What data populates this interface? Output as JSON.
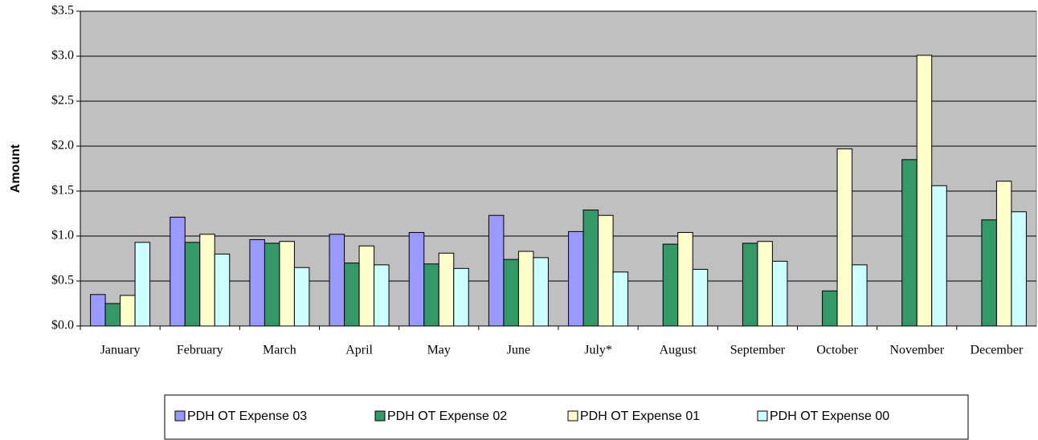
{
  "chart_data": {
    "type": "bar",
    "y_label": "Amount",
    "categories": [
      "January",
      "February",
      "March",
      "April",
      "May",
      "June",
      "July*",
      "August",
      "September",
      "October",
      "November",
      "December"
    ],
    "series": [
      {
        "name": "PDH OT Expense 03",
        "color": "#9999ff",
        "values": [
          0.35,
          1.21,
          0.96,
          1.02,
          1.04,
          1.23,
          1.05,
          null,
          null,
          null,
          null,
          null
        ]
      },
      {
        "name": "PDH OT Expense 02",
        "color": "#339966",
        "values": [
          0.25,
          0.93,
          0.92,
          0.7,
          0.69,
          0.74,
          1.29,
          0.91,
          0.92,
          0.39,
          1.85,
          1.18
        ]
      },
      {
        "name": "PDH OT Expense 01",
        "color": "#ffffcc",
        "values": [
          0.34,
          1.02,
          0.94,
          0.89,
          0.81,
          0.83,
          1.23,
          1.04,
          0.94,
          1.97,
          3.01,
          1.61
        ]
      },
      {
        "name": "PDH OT Expense 00",
        "color": "#ccffff",
        "values": [
          0.93,
          0.8,
          0.65,
          0.68,
          0.64,
          0.76,
          0.6,
          0.63,
          0.72,
          0.68,
          1.56,
          1.27
        ]
      }
    ],
    "ylim": [
      0,
      3.5
    ],
    "yticks": [
      {
        "value": 0,
        "label": "$0.0"
      },
      {
        "value": 0.5,
        "label": "$0.5"
      },
      {
        "value": 1,
        "label": "$1.0"
      },
      {
        "value": 1.5,
        "label": "$1.5"
      },
      {
        "value": 2,
        "label": "$2.0"
      },
      {
        "value": 2.5,
        "label": "$2.5"
      },
      {
        "value": 3,
        "label": "$3.0"
      },
      {
        "value": 3.5,
        "label": "$3.5"
      }
    ],
    "grid": true,
    "plot_background": "#c0c0c0",
    "legend_position": "bottom"
  }
}
